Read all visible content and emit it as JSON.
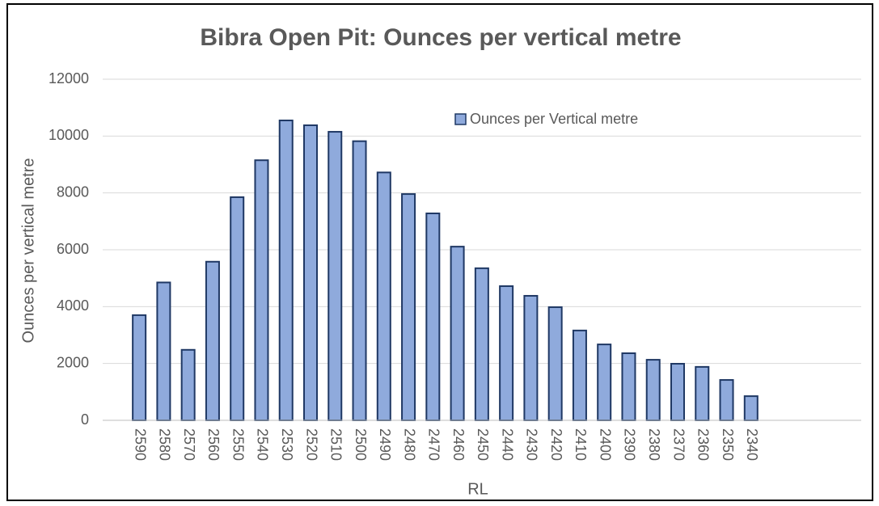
{
  "chart_data": {
    "type": "bar",
    "title": "Bibra Open Pit: Ounces per vertical metre",
    "x_label": "RL",
    "y_label": "Ounces per vertical metre",
    "categories": [
      "2590",
      "2580",
      "2570",
      "2560",
      "2550",
      "2540",
      "2530",
      "2520",
      "2510",
      "2500",
      "2490",
      "2480",
      "2470",
      "2460",
      "2450",
      "2440",
      "2430",
      "2420",
      "2410",
      "2400",
      "2390",
      "2380",
      "2370",
      "2360",
      "2350",
      "2340",
      null,
      null,
      null,
      null
    ],
    "series": [
      {
        "name": "Ounces per Vertical metre",
        "color": "#8faadc",
        "values": [
          3700,
          4850,
          2480,
          5580,
          7850,
          9150,
          10550,
          10380,
          10150,
          9820,
          8720,
          7960,
          7280,
          6110,
          5350,
          4720,
          4380,
          3980,
          3160,
          2670,
          2360,
          2130,
          1990,
          1880,
          1420,
          850,
          null,
          null,
          null,
          null
        ]
      }
    ],
    "ylim": [
      0,
      12000
    ],
    "yticks": [
      0,
      2000,
      4000,
      6000,
      8000,
      10000,
      12000
    ],
    "grid": true,
    "legend": "top"
  }
}
